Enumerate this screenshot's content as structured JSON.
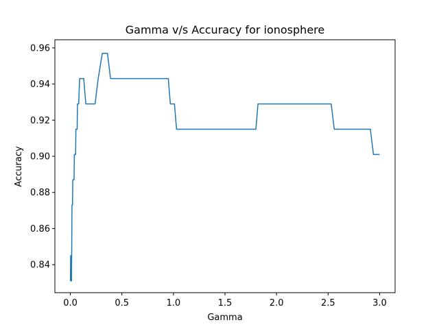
{
  "chart_data": {
    "type": "line",
    "title": "Gamma v/s Accuracy for ionosphere",
    "xlabel": "Gamma",
    "ylabel": "Accuracy",
    "xlim": [
      -0.15,
      3.15
    ],
    "ylim": [
      0.8245,
      0.9645
    ],
    "xticks": [
      0.0,
      0.5,
      1.0,
      1.5,
      2.0,
      2.5,
      3.0
    ],
    "xtick_labels": [
      "0.0",
      "0.5",
      "1.0",
      "1.5",
      "2.0",
      "2.5",
      "3.0"
    ],
    "yticks": [
      0.84,
      0.86,
      0.88,
      0.9,
      0.92,
      0.94,
      0.96
    ],
    "ytick_labels": [
      "0.84",
      "0.86",
      "0.88",
      "0.90",
      "0.92",
      "0.94",
      "0.96"
    ],
    "grid": false,
    "color": "#1f77b4",
    "series": [
      {
        "x": [
          0.001,
          0.003,
          0.006,
          0.008,
          0.011,
          0.013,
          0.016,
          0.021,
          0.024,
          0.036,
          0.039,
          0.051,
          0.054,
          0.066,
          0.069,
          0.081,
          0.09,
          0.1,
          0.13,
          0.15,
          0.17,
          0.2,
          0.24,
          0.27,
          0.31,
          0.36,
          0.39,
          0.6,
          0.8,
          0.95,
          0.97,
          1.01,
          1.03,
          1.3,
          1.6,
          1.8,
          1.82,
          2.0,
          2.3,
          2.53,
          2.56,
          2.8,
          2.91,
          2.94,
          3.0
        ],
        "y": [
          0.831,
          0.845,
          0.831,
          0.845,
          0.831,
          0.845,
          0.873,
          0.873,
          0.887,
          0.887,
          0.901,
          0.901,
          0.915,
          0.915,
          0.929,
          0.929,
          0.943,
          0.943,
          0.943,
          0.929,
          0.929,
          0.929,
          0.929,
          0.943,
          0.957,
          0.957,
          0.943,
          0.943,
          0.943,
          0.943,
          0.929,
          0.929,
          0.915,
          0.915,
          0.915,
          0.915,
          0.929,
          0.929,
          0.929,
          0.929,
          0.915,
          0.915,
          0.915,
          0.901,
          0.901
        ]
      }
    ]
  }
}
